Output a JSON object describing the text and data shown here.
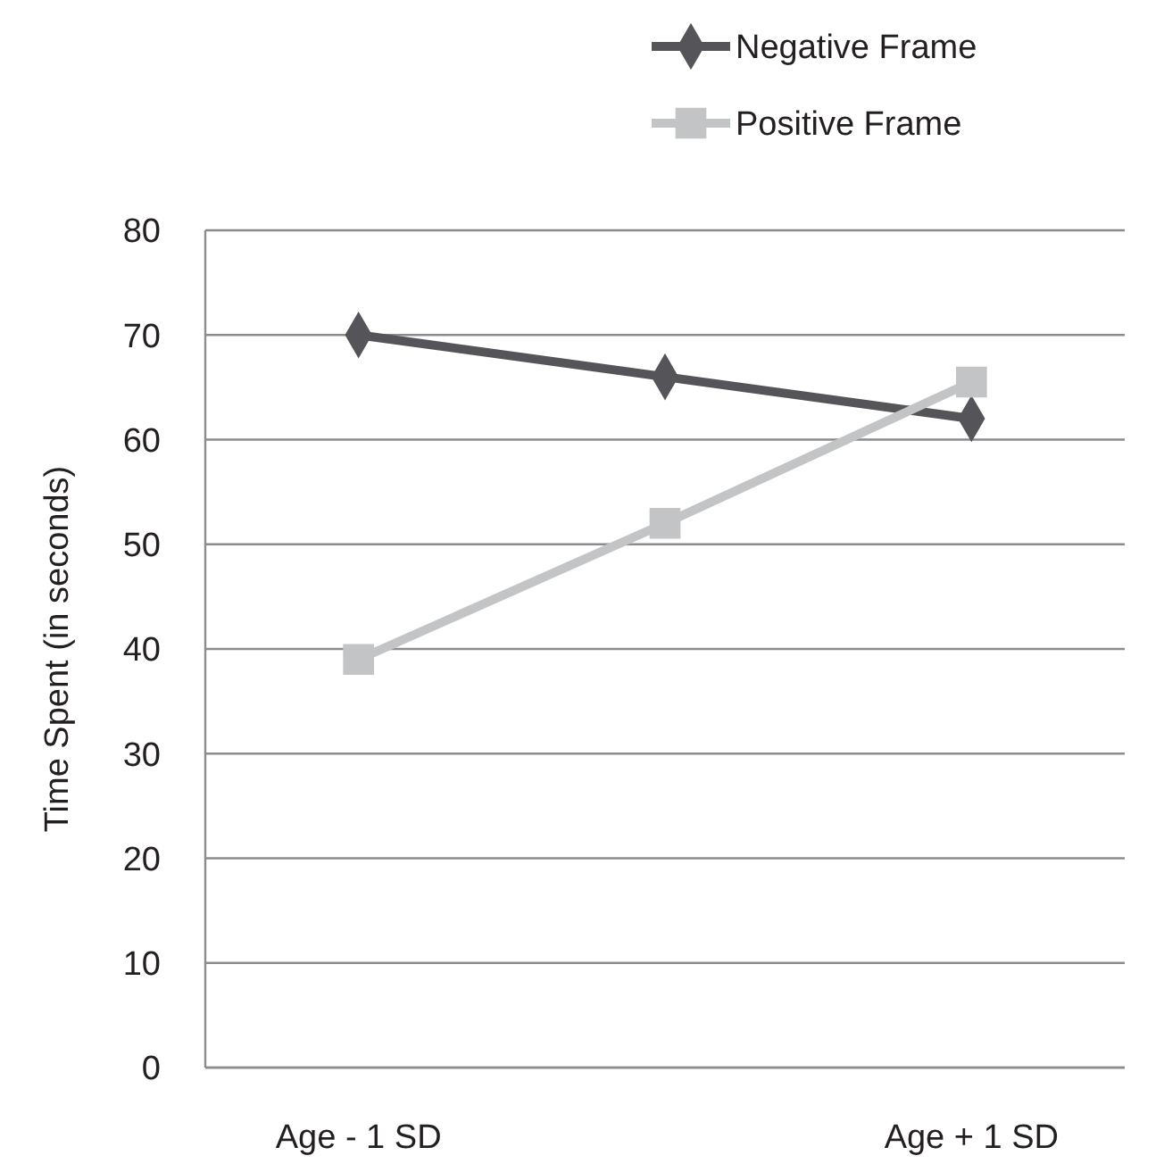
{
  "chart_data": {
    "type": "line",
    "ylabel": "Time Spent (in seconds)",
    "categories": [
      "Age - 1 SD",
      null,
      "Age + 1 SD"
    ],
    "series": [
      {
        "name": "Negative Frame",
        "color": "#555559",
        "values": [
          70,
          66,
          62
        ],
        "marker": "diamond"
      },
      {
        "name": "Positive Frame",
        "color": "#c3c4c6",
        "values": [
          39,
          52,
          65.5
        ],
        "marker": "square"
      }
    ],
    "ylim": [
      0,
      80
    ],
    "yticks": [
      0,
      10,
      20,
      30,
      40,
      50,
      60,
      70,
      80
    ],
    "grid": "y",
    "legend": "top right"
  }
}
